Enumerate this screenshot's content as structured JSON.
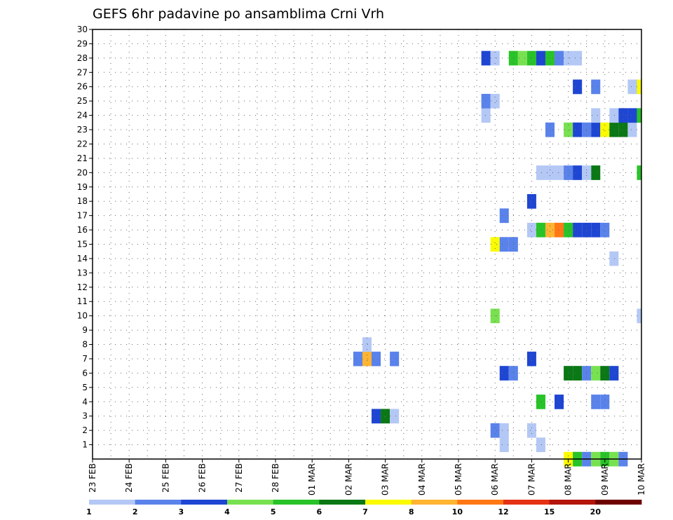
{
  "chart_data": {
    "type": "heatmap",
    "title": "GEFS 6hr padavine po ansamblima Crni Vrh",
    "xlabel": "",
    "ylabel": "",
    "x_tick_labels": [
      "23 FEB",
      "24 FEB",
      "25 FEB",
      "26 FEB",
      "27 FEB",
      "28 FEB",
      "01 MAR",
      "02 MAR",
      "03 MAR",
      "04 MAR",
      "05 MAR",
      "06 MAR",
      "07 MAR",
      "08 MAR",
      "09 MAR",
      "10 MAR"
    ],
    "x_range_days": [
      0,
      15
    ],
    "y_tick_labels": [
      "1",
      "2",
      "3",
      "4",
      "5",
      "6",
      "7",
      "8",
      "9",
      "10",
      "11",
      "12",
      "13",
      "14",
      "15",
      "16",
      "17",
      "18",
      "19",
      "20",
      "21",
      "22",
      "23",
      "24",
      "25",
      "26",
      "27",
      "28",
      "29",
      "30"
    ],
    "y_range": [
      0,
      30
    ],
    "grid": true,
    "legend_placement": "bottom",
    "legend": {
      "labels": [
        "1",
        "2",
        "3",
        "4",
        "5",
        "6",
        "7",
        "8",
        "10",
        "12",
        "15",
        "20"
      ],
      "colors": [
        "#b4c8f5",
        "#5a82eb",
        "#1e46d2",
        "#78e150",
        "#28c328",
        "#0a7814",
        "#fafa00",
        "#ffb432",
        "#ff7814",
        "#e63214",
        "#b4140a",
        "#6e0000"
      ]
    },
    "cells": [
      [
        13.0,
        0,
        6
      ],
      [
        13.25,
        0,
        4
      ],
      [
        13.5,
        0,
        1
      ],
      [
        13.75,
        0,
        3
      ],
      [
        14.0,
        0,
        4
      ],
      [
        14.25,
        0,
        3
      ],
      [
        14.5,
        0,
        1
      ],
      [
        11.25,
        1,
        0
      ],
      [
        12.25,
        1,
        0
      ],
      [
        11.0,
        2,
        1
      ],
      [
        11.25,
        2,
        0
      ],
      [
        12.0,
        2,
        0
      ],
      [
        7.75,
        3,
        2
      ],
      [
        8.0,
        3,
        5
      ],
      [
        8.25,
        3,
        0
      ],
      [
        12.25,
        4,
        4
      ],
      [
        12.75,
        4,
        2
      ],
      [
        13.75,
        4,
        1
      ],
      [
        14.0,
        4,
        1
      ],
      [
        11.25,
        6,
        2
      ],
      [
        11.5,
        6,
        1
      ],
      [
        13.0,
        6,
        5
      ],
      [
        13.25,
        6,
        5
      ],
      [
        13.5,
        6,
        1
      ],
      [
        13.75,
        6,
        3
      ],
      [
        14.0,
        6,
        5
      ],
      [
        14.25,
        6,
        2
      ],
      [
        7.25,
        7,
        1
      ],
      [
        7.5,
        7,
        7
      ],
      [
        7.75,
        7,
        1
      ],
      [
        8.25,
        7,
        1
      ],
      [
        12.0,
        7,
        2
      ],
      [
        7.5,
        8,
        0
      ],
      [
        11.0,
        10,
        3
      ],
      [
        15.0,
        10,
        0
      ],
      [
        14.25,
        14,
        0
      ],
      [
        11.0,
        15,
        6
      ],
      [
        11.25,
        15,
        1
      ],
      [
        11.5,
        15,
        1
      ],
      [
        12.0,
        16,
        0
      ],
      [
        12.25,
        16,
        4
      ],
      [
        12.5,
        16,
        7
      ],
      [
        12.75,
        16,
        8
      ],
      [
        13.0,
        16,
        4
      ],
      [
        13.25,
        16,
        2
      ],
      [
        13.5,
        16,
        2
      ],
      [
        13.75,
        16,
        2
      ],
      [
        14.0,
        16,
        1
      ],
      [
        11.25,
        17,
        1
      ],
      [
        12.0,
        18,
        2
      ],
      [
        15.0,
        20,
        4
      ],
      [
        13.75,
        20,
        5
      ],
      [
        12.25,
        20,
        0
      ],
      [
        12.5,
        20,
        0
      ],
      [
        12.75,
        20,
        0
      ],
      [
        13.0,
        20,
        1
      ],
      [
        13.25,
        20,
        2
      ],
      [
        13.5,
        20,
        0
      ],
      [
        12.5,
        23,
        1
      ],
      [
        13.0,
        23,
        3
      ],
      [
        13.25,
        23,
        2
      ],
      [
        13.5,
        23,
        1
      ],
      [
        13.75,
        23,
        2
      ],
      [
        14.0,
        23,
        6
      ],
      [
        14.25,
        23,
        5
      ],
      [
        14.5,
        23,
        5
      ],
      [
        14.75,
        23,
        0
      ],
      [
        10.75,
        24,
        0
      ],
      [
        13.75,
        24,
        0
      ],
      [
        14.25,
        24,
        0
      ],
      [
        14.5,
        24,
        2
      ],
      [
        14.75,
        24,
        2
      ],
      [
        15.0,
        24,
        4
      ],
      [
        10.75,
        25,
        1
      ],
      [
        11.0,
        25,
        0
      ],
      [
        13.25,
        26,
        2
      ],
      [
        13.75,
        26,
        1
      ],
      [
        14.75,
        26,
        0
      ],
      [
        15.0,
        26,
        6
      ],
      [
        10.75,
        28,
        2
      ],
      [
        11.0,
        28,
        0
      ],
      [
        11.5,
        28,
        4
      ],
      [
        11.75,
        28,
        3
      ],
      [
        12.0,
        28,
        4
      ],
      [
        12.25,
        28,
        2
      ],
      [
        12.5,
        28,
        4
      ],
      [
        12.75,
        28,
        1
      ],
      [
        13.0,
        28,
        0
      ],
      [
        13.25,
        28,
        0
      ]
    ]
  }
}
